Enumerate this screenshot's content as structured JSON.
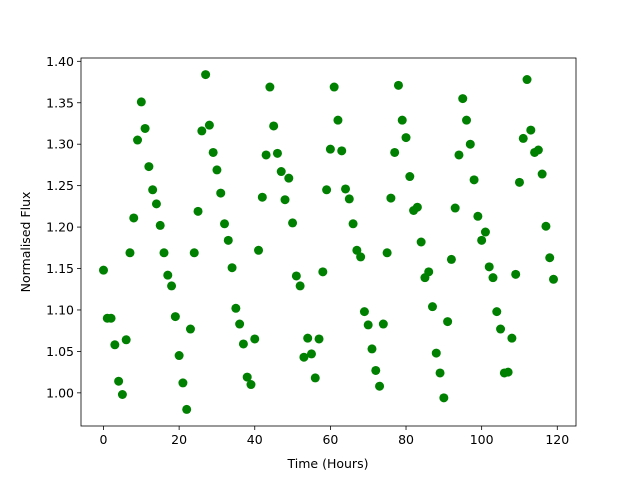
{
  "chart_data": {
    "type": "scatter",
    "xlabel": "Time (Hours)",
    "ylabel": "Normalised Flux",
    "color": "#008000",
    "x": [
      0,
      1,
      2,
      3,
      4,
      5,
      6,
      7,
      8,
      9,
      10,
      11,
      12,
      13,
      14,
      15,
      16,
      17,
      18,
      19,
      20,
      21,
      22,
      23,
      24,
      25,
      26,
      27,
      28,
      29,
      30,
      31,
      32,
      33,
      34,
      35,
      36,
      37,
      38,
      39,
      40,
      41,
      42,
      43,
      44,
      45,
      46,
      47,
      48,
      49,
      50,
      51,
      52,
      53,
      54,
      55,
      56,
      57,
      58,
      59,
      60,
      61,
      62,
      63,
      64,
      65,
      66,
      67,
      68,
      69,
      70,
      71,
      72,
      73,
      74,
      75,
      76,
      77,
      78,
      79,
      80,
      81,
      82,
      83,
      84,
      85,
      86,
      87,
      88,
      89,
      90,
      91,
      92,
      93,
      94,
      95,
      96,
      97,
      98,
      99,
      100,
      101,
      102,
      103,
      104,
      105,
      106,
      107,
      108,
      109,
      110,
      111,
      112,
      113,
      114,
      115,
      116,
      117,
      118,
      119
    ],
    "values": [
      1.148,
      1.09,
      1.09,
      1.058,
      1.014,
      0.998,
      1.064,
      1.169,
      1.211,
      1.305,
      1.351,
      1.319,
      1.273,
      1.245,
      1.228,
      1.202,
      1.169,
      1.142,
      1.129,
      1.092,
      1.045,
      1.012,
      0.98,
      1.077,
      1.169,
      1.219,
      1.316,
      1.384,
      1.323,
      1.29,
      1.269,
      1.241,
      1.204,
      1.184,
      1.151,
      1.102,
      1.083,
      1.059,
      1.019,
      1.01,
      1.065,
      1.172,
      1.236,
      1.287,
      1.369,
      1.322,
      1.289,
      1.267,
      1.233,
      1.259,
      1.205,
      1.141,
      1.129,
      1.043,
      1.066,
      1.047,
      1.018,
      1.065,
      1.146,
      1.245,
      1.294,
      1.369,
      1.329,
      1.292,
      1.246,
      1.234,
      1.204,
      1.172,
      1.164,
      1.098,
      1.082,
      1.053,
      1.027,
      1.008,
      1.083,
      1.169,
      1.235,
      1.29,
      1.371,
      1.329,
      1.308,
      1.261,
      1.22,
      1.224,
      1.182,
      1.139,
      1.146,
      1.104,
      1.048,
      1.024,
      0.994,
      1.086,
      1.161,
      1.223,
      1.287,
      1.355,
      1.329,
      1.3,
      1.257,
      1.213,
      1.184,
      1.194,
      1.152,
      1.139,
      1.098,
      1.077,
      1.024,
      1.025,
      1.066,
      1.143,
      1.254,
      1.307,
      1.378,
      1.317,
      1.29,
      1.293,
      1.264,
      1.201,
      1.163,
      1.137
    ],
    "xlim": [
      -5.95,
      124.95
    ],
    "ylim": [
      0.96,
      1.404
    ],
    "xticks": [
      0,
      20,
      40,
      60,
      80,
      100,
      120
    ],
    "yticks": [
      {
        "value": 1,
        "label": "1.00"
      },
      1.05,
      {
        "value": 1.1,
        "label": "1.10"
      },
      1.15,
      {
        "value": 1.2,
        "label": "1.20"
      },
      1.25,
      {
        "value": 1.3,
        "label": "1.30"
      },
      1.35,
      {
        "value": 1.4,
        "label": "1.40"
      }
    ]
  }
}
